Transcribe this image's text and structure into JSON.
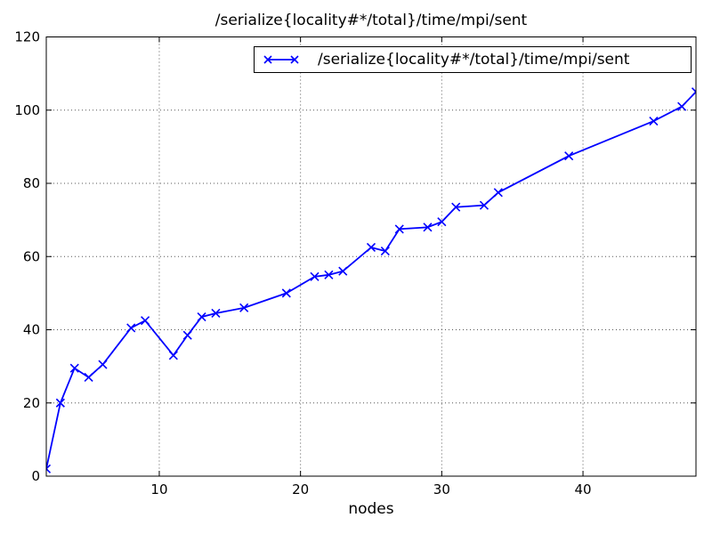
{
  "figure": {
    "background": "#ffffff",
    "text_color": "#000000"
  },
  "chart_data": {
    "type": "line",
    "title": "/serialize{locality#*/total}/time/mpi/sent",
    "xlabel": "nodes",
    "ylabel": "",
    "xlim": [
      2,
      48
    ],
    "ylim": [
      0,
      120
    ],
    "xticks": [
      10,
      20,
      30,
      40
    ],
    "yticks": [
      0,
      20,
      40,
      60,
      80,
      100,
      120
    ],
    "grid": true,
    "grid_style": "dotted",
    "grid_color": "#555555",
    "legend": {
      "position": "upper right",
      "entries": [
        {
          "label": "/serialize{locality#*/total}/time/mpi/sent",
          "color": "#0000ff",
          "marker": "x"
        }
      ]
    },
    "series": [
      {
        "name": "/serialize{locality#*/total}/time/mpi/sent",
        "color": "#0000ff",
        "marker": "x",
        "x": [
          2,
          3,
          4,
          5,
          6,
          8,
          9,
          11,
          12,
          13,
          14,
          16,
          19,
          21,
          22,
          23,
          25,
          26,
          27,
          29,
          30,
          31,
          33,
          34,
          39,
          45,
          47,
          48
        ],
        "y": [
          2,
          20,
          29.5,
          27,
          30.5,
          40.5,
          42.5,
          33,
          38.5,
          43.5,
          44.5,
          46,
          50,
          54.5,
          55,
          56,
          62.5,
          61.5,
          67.5,
          68,
          69.5,
          73.5,
          74,
          77.5,
          87.5,
          97,
          101,
          105
        ]
      }
    ]
  }
}
